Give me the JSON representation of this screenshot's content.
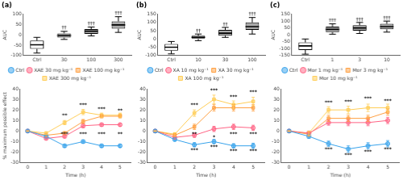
{
  "chart_data": [
    {
      "type": "box",
      "title": "(a)",
      "ylabel": "AUC",
      "categories": [
        "Ctrl",
        "30",
        "100",
        "300"
      ],
      "boxes": [
        {
          "median": -48,
          "q1": -68,
          "q3": -28,
          "low": -88,
          "high": -12
        },
        {
          "median": -3,
          "q1": -13,
          "q3": 7,
          "low": -22,
          "high": 17
        },
        {
          "median": 18,
          "q1": 5,
          "q3": 28,
          "low": -5,
          "high": 38
        },
        {
          "median": 48,
          "q1": 30,
          "q3": 65,
          "low": 12,
          "high": 88
        }
      ],
      "colors": [
        "white",
        "#aaaaaa",
        "#aaaaaa",
        "#aaaaaa"
      ],
      "ylim": [
        -100,
        100
      ],
      "yticks": [
        -100,
        -50,
        0,
        50,
        100
      ],
      "grid": false,
      "annotations": [
        {
          "x": "30",
          "y": 22,
          "text": "††",
          "align": "above"
        },
        {
          "x": "100",
          "y": 42,
          "text": "†††",
          "align": "above"
        },
        {
          "x": "300",
          "y": 92,
          "text": "†††",
          "align": "above"
        }
      ]
    },
    {
      "type": "line",
      "xlabel": "Time (h)",
      "ylabel": "% maximum possible effect",
      "x": [
        0,
        1,
        2,
        3,
        4,
        5
      ],
      "series": [
        {
          "name": "Ctrl",
          "marker": "circle",
          "values": [
            0,
            -5,
            -14,
            -10,
            -14,
            -14
          ],
          "yerr": [
            0,
            1.2,
            1.5,
            1.5,
            1.5,
            1.5
          ]
        },
        {
          "name": "XAE 30 mg kg⁻¹",
          "marker": "circle",
          "values": [
            0,
            -7,
            -5,
            5,
            6,
            6
          ],
          "yerr": [
            0,
            1.2,
            1.5,
            2.0,
            1.5,
            1.5
          ]
        },
        {
          "name": "XAE 100 mg kg⁻¹",
          "marker": "square",
          "values": [
            0,
            -4,
            -2,
            9,
            14,
            14
          ],
          "yerr": [
            0,
            1.2,
            1.5,
            2.0,
            1.5,
            1.5
          ]
        },
        {
          "name": "XAE 300 mg kg⁻¹",
          "marker": "square",
          "values": [
            0,
            -2,
            8,
            18,
            15,
            15
          ],
          "yerr": [
            0,
            1.2,
            2.0,
            2.5,
            2.0,
            2.0
          ]
        }
      ],
      "xlim": [
        -0.4,
        5.6
      ],
      "xticks": [
        0,
        1,
        2,
        3,
        4,
        5
      ],
      "ylim": [
        -30,
        40
      ],
      "yticks": [
        -30,
        -20,
        -10,
        0,
        10,
        20,
        30,
        40
      ],
      "grid": false,
      "legend": "top",
      "annotations": [
        {
          "x": 2,
          "y": 12,
          "text": "**",
          "align": "above"
        },
        {
          "x": 3,
          "y": 22,
          "text": "***",
          "align": "above"
        },
        {
          "x": 4,
          "y": 18,
          "text": "***",
          "align": "above"
        },
        {
          "x": 5,
          "y": 17,
          "text": "**",
          "align": "above"
        },
        {
          "x": 2,
          "y": -1,
          "text": "***",
          "align": "below"
        },
        {
          "x": 3,
          "y": -1,
          "text": "***",
          "align": "below"
        },
        {
          "x": 4,
          "y": -1,
          "text": "***",
          "align": "below"
        },
        {
          "x": 5,
          "y": -1,
          "text": "**",
          "align": "below"
        }
      ]
    },
    {
      "type": "box",
      "title": "(b)",
      "ylabel": "AUC",
      "categories": [
        "Ctrl",
        "10",
        "30",
        "100"
      ],
      "boxes": [
        {
          "median": -50,
          "q1": -70,
          "q3": -30,
          "low": -90,
          "high": -15
        },
        {
          "median": 10,
          "q1": 0,
          "q3": 20,
          "low": -10,
          "high": 30
        },
        {
          "median": 35,
          "q1": 20,
          "q3": 55,
          "low": 10,
          "high": 70
        },
        {
          "median": 75,
          "q1": 55,
          "q3": 100,
          "low": 30,
          "high": 130
        }
      ],
      "colors": [
        "white",
        "#aaaaaa",
        "#aaaaaa",
        "#aaaaaa"
      ],
      "ylim": [
        -100,
        150
      ],
      "yticks": [
        -100,
        -50,
        0,
        50,
        100,
        150
      ],
      "grid": false,
      "annotations": [
        {
          "x": "10",
          "y": 35,
          "text": "††",
          "align": "above"
        },
        {
          "x": "30",
          "y": 75,
          "text": "††",
          "align": "above"
        },
        {
          "x": "100",
          "y": 135,
          "text": "†††",
          "align": "above"
        }
      ]
    },
    {
      "type": "line",
      "xlabel": "Time (h)",
      "x": [
        0,
        1,
        2,
        3,
        4,
        5
      ],
      "series": [
        {
          "name": "Ctrl",
          "marker": "circle",
          "values": [
            0,
            -8,
            -13,
            -10,
            -14,
            -14
          ],
          "yerr": [
            0,
            1.5,
            2.0,
            2.0,
            2.0,
            2.5
          ]
        },
        {
          "name": "XA 10 mg kg⁻¹",
          "marker": "circle",
          "values": [
            0,
            -6,
            -4,
            2,
            4,
            3
          ],
          "yerr": [
            0,
            1.5,
            2.0,
            2.5,
            2.5,
            2.5
          ]
        },
        {
          "name": "XA 30 mg kg⁻¹",
          "marker": "square",
          "values": [
            0,
            -4,
            4,
            22,
            22,
            22
          ],
          "yerr": [
            0,
            1.5,
            2.5,
            3.0,
            3.0,
            3.0
          ]
        },
        {
          "name": "XA 100 mg kg⁻¹",
          "marker": "square",
          "values": [
            0,
            -3,
            17,
            30,
            25,
            28
          ],
          "yerr": [
            0,
            1.5,
            3.0,
            4.0,
            3.5,
            4.0
          ]
        }
      ],
      "xlim": [
        -0.4,
        5.6
      ],
      "xticks": [
        0,
        1,
        2,
        3,
        4,
        5
      ],
      "ylim": [
        -30,
        40
      ],
      "yticks": [
        -30,
        -20,
        -10,
        0,
        10,
        20,
        30,
        40
      ],
      "grid": false,
      "legend": "top",
      "annotations": [
        {
          "x": 2,
          "y": 22,
          "text": "***",
          "align": "above"
        },
        {
          "x": 3,
          "y": 36,
          "text": "***",
          "align": "above"
        },
        {
          "x": 4,
          "y": 30,
          "text": "***",
          "align": "above"
        },
        {
          "x": 5,
          "y": 34,
          "text": "***",
          "align": "above"
        },
        {
          "x": 2,
          "y": -1,
          "text": "**",
          "align": "below"
        },
        {
          "x": 3,
          "y": -4,
          "text": "*",
          "align": "below"
        },
        {
          "x": 4,
          "y": -1,
          "text": "***",
          "align": "below"
        },
        {
          "x": 5,
          "y": -1,
          "text": "***",
          "align": "below"
        },
        {
          "x": 2,
          "y": -16,
          "text": "***",
          "align": "below"
        },
        {
          "x": 3,
          "y": -13,
          "text": "***",
          "align": "below"
        },
        {
          "x": 4,
          "y": -17,
          "text": "***",
          "align": "below"
        },
        {
          "x": 5,
          "y": -17,
          "text": "***",
          "align": "below"
        }
      ]
    },
    {
      "type": "box",
      "title": "(c)",
      "ylabel": "AUC",
      "categories": [
        "Ctrl",
        "1",
        "3",
        "10"
      ],
      "boxes": [
        {
          "median": -80,
          "q1": -110,
          "q3": -55,
          "low": -140,
          "high": -30
        },
        {
          "median": 40,
          "q1": 20,
          "q3": 60,
          "low": 5,
          "high": 80
        },
        {
          "median": 50,
          "q1": 30,
          "q3": 70,
          "low": 10,
          "high": 90
        },
        {
          "median": 60,
          "q1": 40,
          "q3": 80,
          "low": 20,
          "high": 100
        }
      ],
      "colors": [
        "white",
        "#aaaaaa",
        "#aaaaaa",
        "#aaaaaa"
      ],
      "ylim": [
        -150,
        150
      ],
      "yticks": [
        -150,
        -100,
        -50,
        0,
        50,
        100,
        150
      ],
      "grid": false,
      "annotations": [
        {
          "x": "1",
          "y": 85,
          "text": "†††",
          "align": "above"
        },
        {
          "x": "3",
          "y": 95,
          "text": "†††",
          "align": "above"
        },
        {
          "x": "10",
          "y": 105,
          "text": "†††",
          "align": "above"
        }
      ]
    },
    {
      "type": "line",
      "xlabel": "Time (h)",
      "x": [
        0,
        1,
        2,
        3,
        4,
        5
      ],
      "series": [
        {
          "name": "Ctrl",
          "marker": "circle",
          "values": [
            0,
            -5,
            -12,
            -17,
            -14,
            -12
          ],
          "yerr": [
            0,
            2.0,
            2.5,
            3.0,
            3.0,
            3.0
          ]
        },
        {
          "name": "Mor 1 mg kg⁻¹",
          "marker": "circle",
          "values": [
            0,
            -2,
            8,
            8,
            8,
            10
          ],
          "yerr": [
            0,
            2.0,
            2.5,
            3.0,
            3.0,
            3.0
          ]
        },
        {
          "name": "Mor 3 mg kg⁻¹",
          "marker": "square",
          "values": [
            0,
            -3,
            12,
            12,
            12,
            18
          ],
          "yerr": [
            0,
            2.0,
            3.0,
            3.0,
            3.0,
            3.0
          ]
        },
        {
          "name": "Mor 10 mg kg⁻¹",
          "marker": "square",
          "values": [
            0,
            -2,
            20,
            20,
            22,
            22
          ],
          "yerr": [
            0,
            2.0,
            3.0,
            3.5,
            3.5,
            3.5
          ]
        }
      ],
      "xlim": [
        -0.4,
        5.6
      ],
      "xticks": [
        0,
        1,
        2,
        3,
        4,
        5
      ],
      "ylim": [
        -30,
        40
      ],
      "yticks": [
        -30,
        -20,
        -10,
        0,
        10,
        20,
        30,
        40
      ],
      "grid": false,
      "legend": "top",
      "annotations": [
        {
          "x": 2,
          "y": 24,
          "text": "***",
          "align": "above"
        },
        {
          "x": 3,
          "y": 25,
          "text": "***",
          "align": "above"
        },
        {
          "x": 4,
          "y": 28,
          "text": "***",
          "align": "above"
        },
        {
          "x": 5,
          "y": 26,
          "text": "***",
          "align": "above"
        },
        {
          "x": 2,
          "y": -15,
          "text": "***",
          "align": "below"
        },
        {
          "x": 3,
          "y": -21,
          "text": "***",
          "align": "below"
        },
        {
          "x": 4,
          "y": -18,
          "text": "***",
          "align": "below"
        },
        {
          "x": 5,
          "y": -15,
          "text": "***",
          "align": "below"
        }
      ]
    }
  ]
}
